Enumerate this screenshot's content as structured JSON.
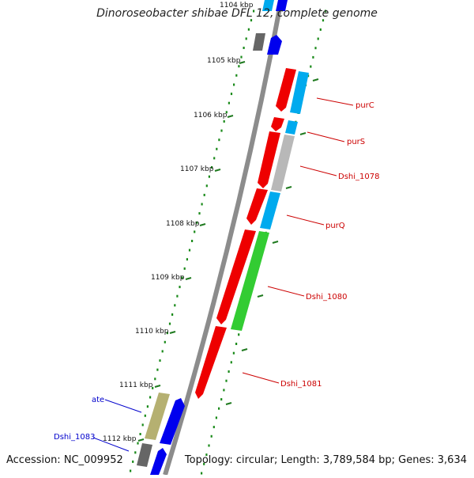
{
  "title": "Dinoroseobacter shibae DFL 12, complete genome",
  "footer": {
    "accession": "Accession: NC_009952",
    "topology": "Topology: circular; Length: 3,789,584 bp; Genes: 3,634"
  },
  "colors": {
    "backbone": "#8c8c8c",
    "dots": "#1a8a1a",
    "tick": "#1f7a1f",
    "red": "#ee0000",
    "cyan": "#00aaee",
    "gray": "#b8b8b8",
    "green": "#33cc33",
    "olive": "#b5b071",
    "blue": "#0000ee",
    "darkgray": "#666666",
    "label_red": "#cc0000",
    "label_blue": "#0000cc"
  },
  "ruler": {
    "partial_label": "1104 kbp",
    "labels": [
      "1105 kbp",
      "1106 kbp",
      "1107 kbp",
      "1108 kbp",
      "1109 kbp",
      "1110 kbp",
      "1111 kbp",
      "1112 kbp"
    ]
  },
  "genes": [
    {
      "name": "purC",
      "label_color": "red"
    },
    {
      "name": "purS",
      "label_color": "red"
    },
    {
      "name": "Dshi_1078",
      "label_color": "red"
    },
    {
      "name": "purQ",
      "label_color": "red"
    },
    {
      "name": "Dshi_1080",
      "label_color": "red"
    },
    {
      "name": "Dshi_1081",
      "label_color": "red"
    },
    {
      "name": "ate",
      "label_color": "blue"
    },
    {
      "name": "Dshi_1083",
      "label_color": "blue"
    }
  ]
}
